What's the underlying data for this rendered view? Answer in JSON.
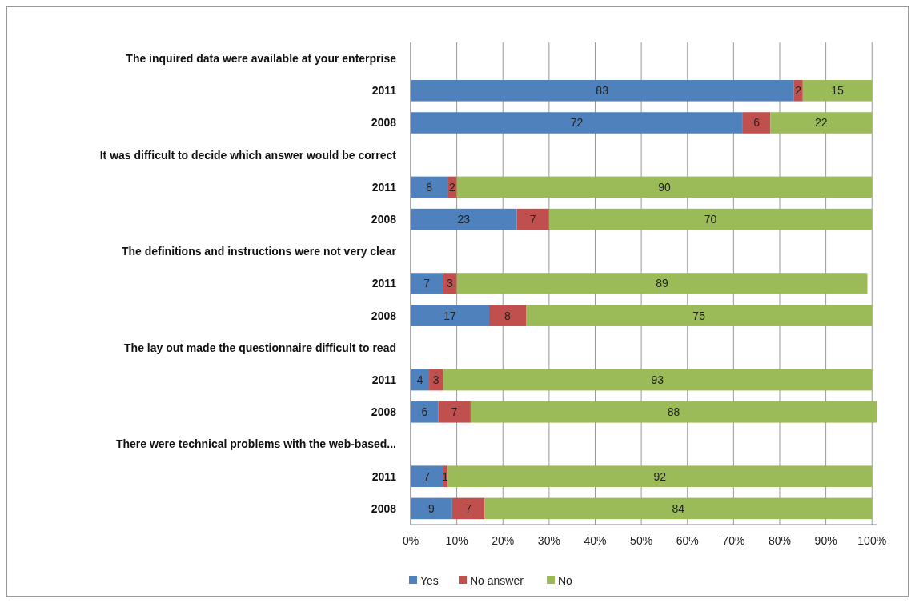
{
  "chart_data": {
    "type": "bar",
    "orientation": "horizontal",
    "stacked": true,
    "data_labels": true,
    "grid": "x",
    "legend": "bottom",
    "categories": [
      "The inquired data were available at your enterprise",
      "2011",
      "2008",
      "It was difficult to decide which answer would be correct",
      "2011",
      "2008",
      "The definitions and instructions were not very clear",
      "2011",
      "2008",
      "The lay out made the questionnaire difficult to read",
      "2011",
      "2008",
      "There were technical problems with the web-based...",
      "2011",
      "2008"
    ],
    "series": [
      {
        "name": "Yes",
        "color": "#4f81bd",
        "values": [
          null,
          83,
          72,
          null,
          8,
          23,
          null,
          7,
          17,
          null,
          4,
          6,
          null,
          7,
          9
        ]
      },
      {
        "name": "No answer",
        "color": "#c0504d",
        "values": [
          null,
          2,
          6,
          null,
          2,
          7,
          null,
          3,
          8,
          null,
          3,
          7,
          null,
          1,
          7
        ]
      },
      {
        "name": "No",
        "color": "#9bbb59",
        "values": [
          null,
          15,
          22,
          null,
          90,
          70,
          null,
          89,
          75,
          null,
          93,
          88,
          null,
          92,
          84
        ]
      }
    ],
    "xlim": [
      0,
      101
    ],
    "xticks": [
      {
        "value": 0,
        "label": "0%"
      },
      {
        "value": 10,
        "label": "10%"
      },
      {
        "value": 20,
        "label": "20%"
      },
      {
        "value": 30,
        "label": "30%"
      },
      {
        "value": 40,
        "label": "40%"
      },
      {
        "value": 50,
        "label": "50%"
      },
      {
        "value": 60,
        "label": "60%"
      },
      {
        "value": 70,
        "label": "70%"
      },
      {
        "value": 80,
        "label": "80%"
      },
      {
        "value": 90,
        "label": "90%"
      },
      {
        "value": 100,
        "label": "100%"
      }
    ]
  }
}
